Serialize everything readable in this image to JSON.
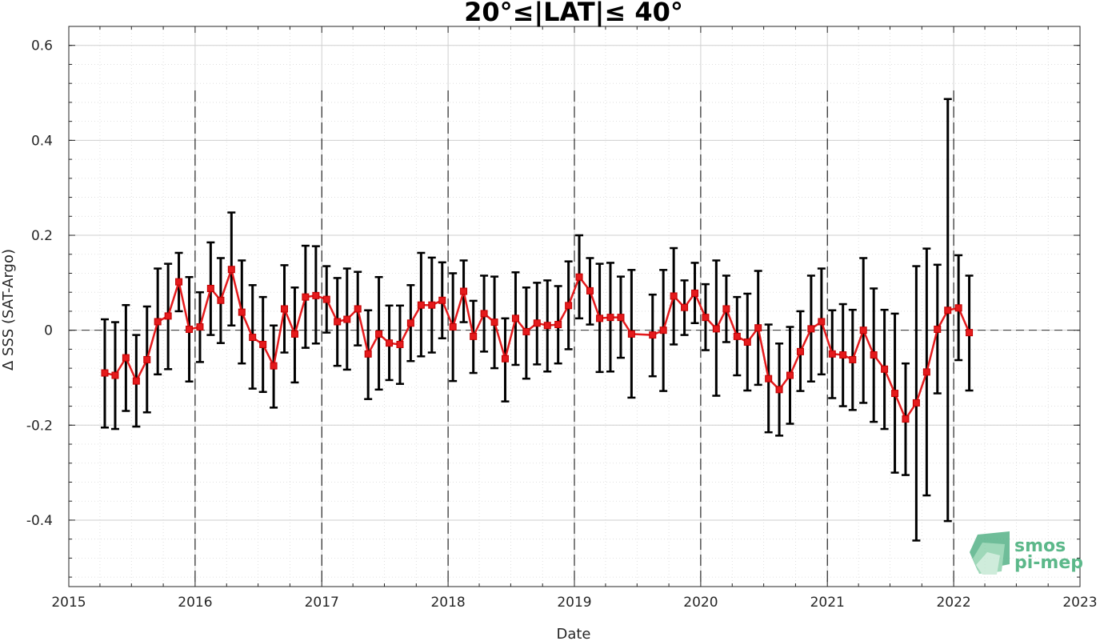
{
  "chart_data": {
    "type": "line",
    "title": "20°≤|LAT|≤ 40°",
    "xlabel": "Date",
    "ylabel": "Δ SSS (SAT-Argo)",
    "x_type": "date",
    "xlim": [
      "2015-01-01",
      "2023-01-01"
    ],
    "ylim": [
      -0.54,
      0.64
    ],
    "x_ticks": [
      "2015",
      "2016",
      "2017",
      "2018",
      "2019",
      "2020",
      "2021",
      "2022",
      "2023"
    ],
    "y_ticks": [
      -0.4,
      -0.2,
      0,
      0.2,
      0.4,
      0.6
    ],
    "y_tick_labels": [
      "-0.4",
      "-0.2",
      "0",
      "0.2",
      "0.4",
      "0.6"
    ],
    "grid": true,
    "zero_line": "dashed",
    "year_separators": [
      "2016",
      "2017",
      "2018",
      "2019",
      "2020",
      "2021",
      "2022"
    ],
    "series": [
      {
        "color": "#e41a1c",
        "marker": "square",
        "errorbar_color": "#000000",
        "points": [
          {
            "x": "2015-04-15",
            "y": -0.09,
            "lo": -0.205,
            "hi": 0.023
          },
          {
            "x": "2015-05-15",
            "y": -0.095,
            "lo": -0.208,
            "hi": 0.017
          },
          {
            "x": "2015-06-15",
            "y": -0.058,
            "lo": -0.17,
            "hi": 0.053
          },
          {
            "x": "2015-07-15",
            "y": -0.107,
            "lo": -0.203,
            "hi": -0.01
          },
          {
            "x": "2015-08-15",
            "y": -0.062,
            "lo": -0.173,
            "hi": 0.05
          },
          {
            "x": "2015-09-15",
            "y": 0.018,
            "lo": -0.093,
            "hi": 0.13
          },
          {
            "x": "2015-10-15",
            "y": 0.03,
            "lo": -0.082,
            "hi": 0.14
          },
          {
            "x": "2015-11-15",
            "y": 0.102,
            "lo": 0.04,
            "hi": 0.163
          },
          {
            "x": "2015-12-15",
            "y": 0.002,
            "lo": -0.108,
            "hi": 0.112
          },
          {
            "x": "2016-01-15",
            "y": 0.007,
            "lo": -0.067,
            "hi": 0.08
          },
          {
            "x": "2016-02-15",
            "y": 0.088,
            "lo": -0.01,
            "hi": 0.185
          },
          {
            "x": "2016-03-15",
            "y": 0.063,
            "lo": -0.027,
            "hi": 0.152
          },
          {
            "x": "2016-04-15",
            "y": 0.128,
            "lo": 0.01,
            "hi": 0.248
          },
          {
            "x": "2016-05-15",
            "y": 0.038,
            "lo": -0.07,
            "hi": 0.147
          },
          {
            "x": "2016-06-15",
            "y": -0.015,
            "lo": -0.123,
            "hi": 0.095
          },
          {
            "x": "2016-07-15",
            "y": -0.03,
            "lo": -0.13,
            "hi": 0.07
          },
          {
            "x": "2016-08-15",
            "y": -0.075,
            "lo": -0.163,
            "hi": 0.01
          },
          {
            "x": "2016-09-15",
            "y": 0.045,
            "lo": -0.047,
            "hi": 0.137
          },
          {
            "x": "2016-10-15",
            "y": -0.008,
            "lo": -0.11,
            "hi": 0.09
          },
          {
            "x": "2016-11-15",
            "y": 0.07,
            "lo": -0.037,
            "hi": 0.178
          },
          {
            "x": "2016-12-15",
            "y": 0.073,
            "lo": -0.028,
            "hi": 0.177
          },
          {
            "x": "2017-01-15",
            "y": 0.065,
            "lo": -0.005,
            "hi": 0.135
          },
          {
            "x": "2017-02-15",
            "y": 0.018,
            "lo": -0.075,
            "hi": 0.11
          },
          {
            "x": "2017-03-15",
            "y": 0.023,
            "lo": -0.083,
            "hi": 0.13
          },
          {
            "x": "2017-04-15",
            "y": 0.045,
            "lo": -0.032,
            "hi": 0.123
          },
          {
            "x": "2017-05-15",
            "y": -0.05,
            "lo": -0.145,
            "hi": 0.042
          },
          {
            "x": "2017-06-15",
            "y": -0.008,
            "lo": -0.125,
            "hi": 0.112
          },
          {
            "x": "2017-07-15",
            "y": -0.027,
            "lo": -0.105,
            "hi": 0.052
          },
          {
            "x": "2017-08-15",
            "y": -0.03,
            "lo": -0.113,
            "hi": 0.052
          },
          {
            "x": "2017-09-15",
            "y": 0.015,
            "lo": -0.065,
            "hi": 0.095
          },
          {
            "x": "2017-10-15",
            "y": 0.053,
            "lo": -0.055,
            "hi": 0.163
          },
          {
            "x": "2017-11-15",
            "y": 0.053,
            "lo": -0.047,
            "hi": 0.153
          },
          {
            "x": "2017-12-15",
            "y": 0.063,
            "lo": -0.017,
            "hi": 0.143
          },
          {
            "x": "2018-01-15",
            "y": 0.007,
            "lo": -0.107,
            "hi": 0.12
          },
          {
            "x": "2018-02-15",
            "y": 0.082,
            "lo": 0.017,
            "hi": 0.147
          },
          {
            "x": "2018-03-15",
            "y": -0.013,
            "lo": -0.09,
            "hi": 0.062
          },
          {
            "x": "2018-04-15",
            "y": 0.035,
            "lo": -0.045,
            "hi": 0.115
          },
          {
            "x": "2018-05-15",
            "y": 0.017,
            "lo": -0.08,
            "hi": 0.113
          },
          {
            "x": "2018-06-15",
            "y": -0.06,
            "lo": -0.15,
            "hi": 0.025
          },
          {
            "x": "2018-07-15",
            "y": 0.025,
            "lo": -0.073,
            "hi": 0.122
          },
          {
            "x": "2018-08-15",
            "y": -0.003,
            "lo": -0.102,
            "hi": 0.09
          },
          {
            "x": "2018-09-15",
            "y": 0.015,
            "lo": -0.072,
            "hi": 0.1
          },
          {
            "x": "2018-10-15",
            "y": 0.01,
            "lo": -0.087,
            "hi": 0.105
          },
          {
            "x": "2018-11-15",
            "y": 0.012,
            "lo": -0.07,
            "hi": 0.093
          },
          {
            "x": "2018-12-15",
            "y": 0.052,
            "lo": -0.04,
            "hi": 0.145
          },
          {
            "x": "2019-01-15",
            "y": 0.112,
            "lo": 0.025,
            "hi": 0.2
          },
          {
            "x": "2019-02-15",
            "y": 0.083,
            "lo": 0.012,
            "hi": 0.152
          },
          {
            "x": "2019-03-15",
            "y": 0.025,
            "lo": -0.088,
            "hi": 0.14
          },
          {
            "x": "2019-04-15",
            "y": 0.027,
            "lo": -0.087,
            "hi": 0.142
          },
          {
            "x": "2019-05-15",
            "y": 0.027,
            "lo": -0.058,
            "hi": 0.113
          },
          {
            "x": "2019-06-15",
            "y": -0.008,
            "lo": -0.142,
            "hi": 0.127
          },
          {
            "x": "2019-08-15",
            "y": -0.01,
            "lo": -0.097,
            "hi": 0.075
          },
          {
            "x": "2019-09-15",
            "y": 0.0,
            "lo": -0.128,
            "hi": 0.127
          },
          {
            "x": "2019-10-15",
            "y": 0.072,
            "lo": -0.03,
            "hi": 0.173
          },
          {
            "x": "2019-11-15",
            "y": 0.048,
            "lo": -0.01,
            "hi": 0.105
          },
          {
            "x": "2019-12-15",
            "y": 0.078,
            "lo": 0.015,
            "hi": 0.142
          },
          {
            "x": "2020-01-15",
            "y": 0.027,
            "lo": -0.042,
            "hi": 0.097
          },
          {
            "x": "2020-02-15",
            "y": 0.003,
            "lo": -0.138,
            "hi": 0.147
          },
          {
            "x": "2020-03-15",
            "y": 0.045,
            "lo": -0.025,
            "hi": 0.115
          },
          {
            "x": "2020-04-15",
            "y": -0.013,
            "lo": -0.095,
            "hi": 0.07
          },
          {
            "x": "2020-05-15",
            "y": -0.025,
            "lo": -0.127,
            "hi": 0.077
          },
          {
            "x": "2020-06-15",
            "y": 0.005,
            "lo": -0.115,
            "hi": 0.125
          },
          {
            "x": "2020-07-15",
            "y": -0.102,
            "lo": -0.215,
            "hi": 0.012
          },
          {
            "x": "2020-08-15",
            "y": -0.125,
            "lo": -0.222,
            "hi": -0.028
          },
          {
            "x": "2020-09-15",
            "y": -0.095,
            "lo": -0.197,
            "hi": 0.007
          },
          {
            "x": "2020-10-15",
            "y": -0.045,
            "lo": -0.128,
            "hi": 0.04
          },
          {
            "x": "2020-11-15",
            "y": 0.003,
            "lo": -0.108,
            "hi": 0.115
          },
          {
            "x": "2020-12-15",
            "y": 0.018,
            "lo": -0.093,
            "hi": 0.13
          },
          {
            "x": "2021-01-15",
            "y": -0.05,
            "lo": -0.143,
            "hi": 0.042
          },
          {
            "x": "2021-02-15",
            "y": -0.052,
            "lo": -0.16,
            "hi": 0.055
          },
          {
            "x": "2021-03-15",
            "y": -0.062,
            "lo": -0.168,
            "hi": 0.043
          },
          {
            "x": "2021-04-15",
            "y": 0.0,
            "lo": -0.153,
            "hi": 0.152
          },
          {
            "x": "2021-05-15",
            "y": -0.052,
            "lo": -0.193,
            "hi": 0.088
          },
          {
            "x": "2021-06-15",
            "y": -0.082,
            "lo": -0.208,
            "hi": 0.043
          },
          {
            "x": "2021-07-15",
            "y": -0.133,
            "lo": -0.3,
            "hi": 0.035
          },
          {
            "x": "2021-08-15",
            "y": -0.187,
            "lo": -0.305,
            "hi": -0.07
          },
          {
            "x": "2021-09-15",
            "y": -0.153,
            "lo": -0.443,
            "hi": 0.135
          },
          {
            "x": "2021-10-15",
            "y": -0.088,
            "lo": -0.348,
            "hi": 0.172
          },
          {
            "x": "2021-11-15",
            "y": 0.002,
            "lo": -0.133,
            "hi": 0.138
          },
          {
            "x": "2021-12-15",
            "y": 0.042,
            "lo": -0.402,
            "hi": 0.487
          },
          {
            "x": "2022-01-15",
            "y": 0.047,
            "lo": -0.063,
            "hi": 0.158
          },
          {
            "x": "2022-02-15",
            "y": -0.005,
            "lo": -0.127,
            "hi": 0.115
          }
        ]
      }
    ]
  },
  "logo": {
    "line1": "smos",
    "line2": "pi-mep",
    "color": "#5cb88a"
  }
}
